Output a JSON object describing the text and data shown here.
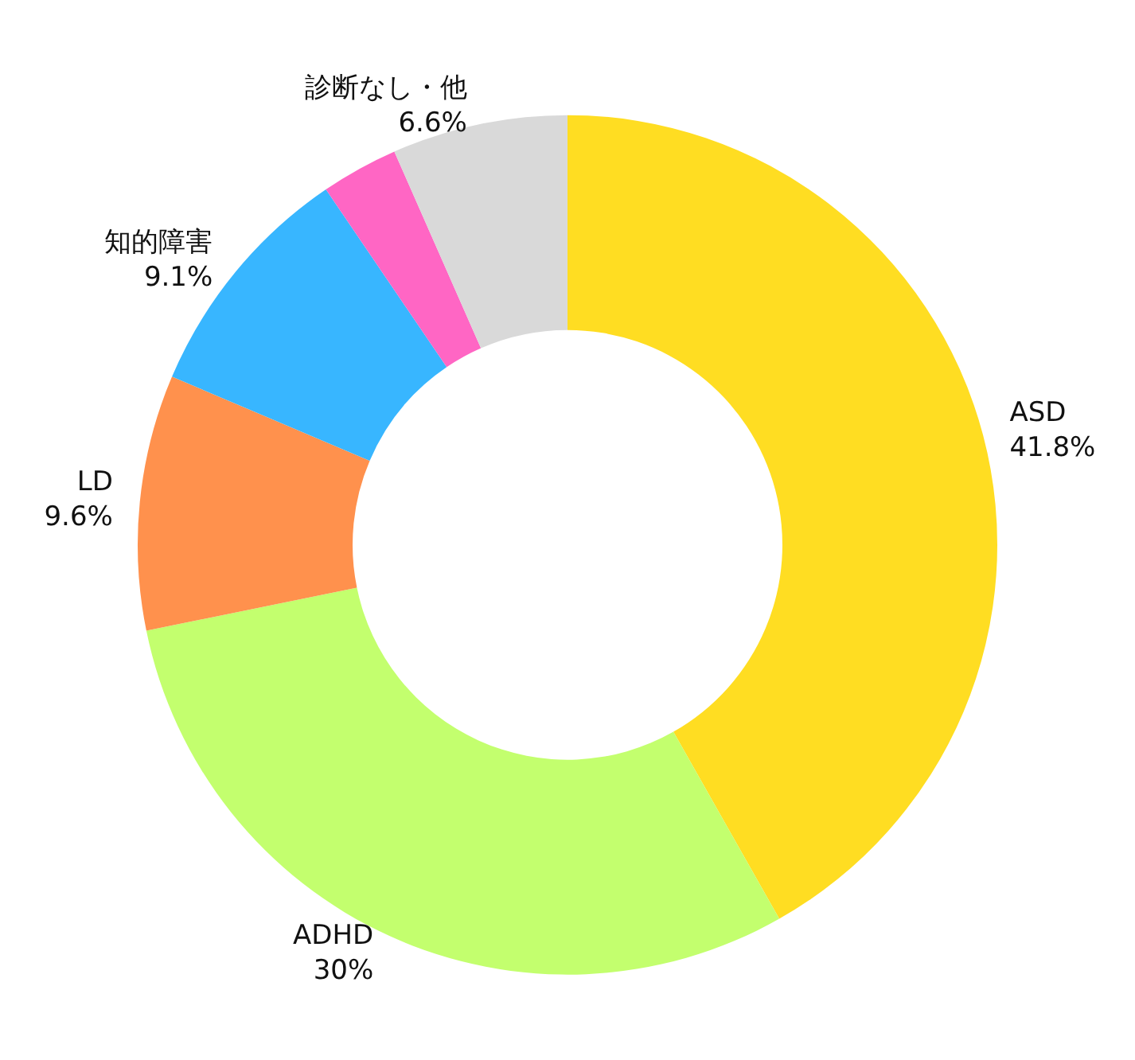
{
  "chart_data": {
    "type": "donut",
    "categories": [
      "ASD",
      "ADHD",
      "LD",
      "知的障害",
      null,
      "診断なし・他"
    ],
    "values": [
      41.8,
      30,
      9.6,
      9.1,
      2.9,
      6.6
    ],
    "value_labels": [
      "41.8%",
      "30%",
      "9.6%",
      "9.1%",
      null,
      "6.6%"
    ],
    "colors": [
      "#ffdd22",
      "#c3ff6e",
      "#ff914d",
      "#38b6ff",
      "#ff66c4",
      "#d9d9d9"
    ],
    "legend": false
  }
}
